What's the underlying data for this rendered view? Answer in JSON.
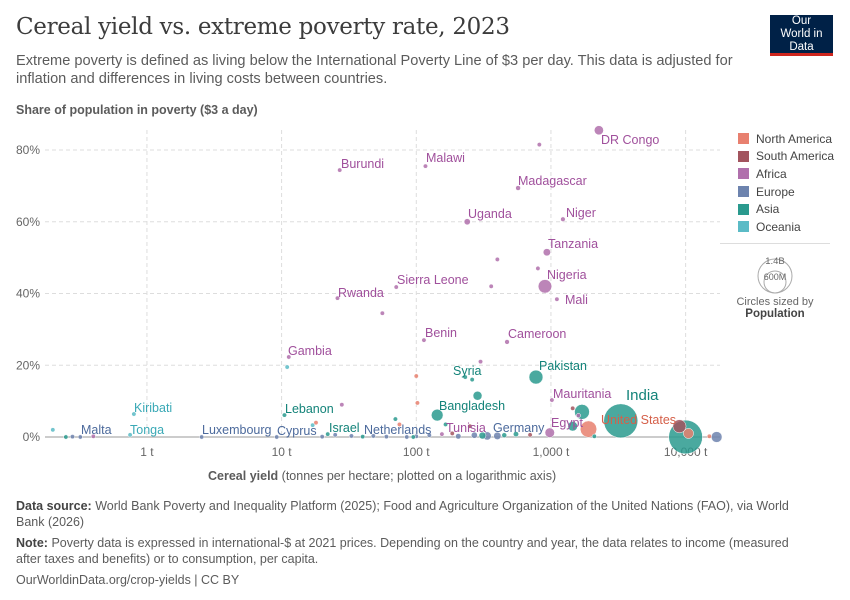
{
  "header": {
    "title": "Cereal yield vs. extreme poverty rate, 2023",
    "subtitle": "Extreme poverty is defined as living below the International Poverty Line of $3 per day. This data is adjusted for inflation and differences in living costs between countries.",
    "logo": "Our World in Data"
  },
  "legend": {
    "items": [
      {
        "label": "North America",
        "color": "#E8806F"
      },
      {
        "label": "South America",
        "color": "#A2545E"
      },
      {
        "label": "Africa",
        "color": "#B070AC"
      },
      {
        "label": "Europe",
        "color": "#6D83AE"
      },
      {
        "label": "Asia",
        "color": "#2A9A8E"
      },
      {
        "label": "Oceania",
        "color": "#5BBBC6"
      }
    ],
    "size_big": "1.4B",
    "size_small": "600M",
    "size_note": "Circles sized by",
    "size_var": "Population"
  },
  "footer": {
    "source_label": "Data source:",
    "source": "World Bank Poverty and Inequality Platform (2025); Food and Agriculture Organization of the United Nations (FAO), via World Bank (2026)",
    "note_label": "Note:",
    "note": "Poverty data is expressed in international-$ at 2021 prices. Depending on the country and year, the data relates to income (measured after taxes and benefits) or to consumption, per capita.",
    "url": "OurWorldinData.org/crop-yields | CC BY"
  },
  "chart_data": {
    "type": "scatter",
    "ylabel": "Share of population in poverty ($3 a day)",
    "xlabel_main": "Cereal yield",
    "xlabel_note": "(tonnes per hectare; plotted on a logarithmic axis)",
    "x_scale": "log",
    "xlim": [
      0.175,
      18000
    ],
    "ylim": [
      0,
      85
    ],
    "x_ticks": [
      {
        "v": 1,
        "label": "1 t"
      },
      {
        "v": 10,
        "label": "10 t"
      },
      {
        "v": 100,
        "label": "100 t"
      },
      {
        "v": 1000,
        "label": "1,000 t"
      },
      {
        "v": 10000,
        "label": "10,000 t"
      }
    ],
    "y_ticks": [
      {
        "v": 0,
        "label": "0%"
      },
      {
        "v": 20,
        "label": "20%"
      },
      {
        "v": 40,
        "label": "40%"
      },
      {
        "v": 60,
        "label": "60%"
      },
      {
        "v": 80,
        "label": "80%"
      }
    ],
    "grid": true,
    "legend_position": "right",
    "points": [
      {
        "label": "DR Congo",
        "x": 2270,
        "y": 85.5,
        "region": "Africa",
        "pop": 105
      },
      {
        "label": "Malawi",
        "x": 117,
        "y": 75.5,
        "region": "Africa",
        "pop": 21
      },
      {
        "label": "Burundi",
        "x": 27,
        "y": 74.4,
        "region": "Africa",
        "pop": 13
      },
      {
        "label": "Madagascar",
        "x": 570,
        "y": 69.4,
        "region": "Africa",
        "pop": 30
      },
      {
        "label": "Uganda",
        "x": 239,
        "y": 60,
        "region": "Africa",
        "pop": 48
      },
      {
        "label": "Niger",
        "x": 1227,
        "y": 60.7,
        "region": "Africa",
        "pop": 27
      },
      {
        "label": "Tanzania",
        "x": 933,
        "y": 51.5,
        "region": "Africa",
        "pop": 67
      },
      {
        "label": "Nigeria",
        "x": 903,
        "y": 42,
        "region": "Africa",
        "pop": 227
      },
      {
        "label": "Mali",
        "x": 1107,
        "y": 38.4,
        "region": "Africa",
        "pop": 23
      },
      {
        "label": "Sierra Leone",
        "x": 71,
        "y": 41.8,
        "region": "Africa",
        "pop": 8.8
      },
      {
        "label": "Rwanda",
        "x": 26,
        "y": 38.7,
        "region": "Africa",
        "pop": 14
      },
      {
        "label": "Benin",
        "x": 114,
        "y": 27,
        "region": "Africa",
        "pop": 14
      },
      {
        "label": "Cameroon",
        "x": 472,
        "y": 26.5,
        "region": "Africa",
        "pop": 28
      },
      {
        "label": "Gambia",
        "x": 11.3,
        "y": 22.3,
        "region": "Africa",
        "pop": 2.7
      },
      {
        "label": "Mauritania",
        "x": 1016,
        "y": 10.3,
        "region": "Africa",
        "pop": 5
      },
      {
        "label": "Egypt",
        "x": 980,
        "y": 1.2,
        "region": "Africa",
        "pop": 113
      },
      {
        "label": "Tunisia",
        "x": 155,
        "y": 0.8,
        "region": "Africa",
        "pop": 12
      },
      {
        "label": "Syria",
        "x": 231,
        "y": 16.7,
        "region": "Asia",
        "pop": 23
      },
      {
        "label": "Pakistan",
        "x": 774,
        "y": 16.7,
        "region": "Asia",
        "pop": 240
      },
      {
        "label": "India",
        "x": 3300,
        "y": 4.5,
        "region": "Asia",
        "pop": 1430
      },
      {
        "label": "Bangladesh",
        "x": 143,
        "y": 6.1,
        "region": "Asia",
        "pop": 171
      },
      {
        "label": "Lebanon",
        "x": 10.5,
        "y": 6.1,
        "region": "Asia",
        "pop": 5.4
      },
      {
        "label": "Israel",
        "x": 22,
        "y": 0.8,
        "region": "Asia",
        "pop": 9.7
      },
      {
        "label": "United States",
        "x": 1900,
        "y": 2.2,
        "region": "North America",
        "pop": 335
      },
      {
        "label": "Germany",
        "x": 336,
        "y": 0.3,
        "region": "Europe",
        "pop": 84
      },
      {
        "label": "Netherlands",
        "x": 100,
        "y": 0.2,
        "region": "Europe",
        "pop": 18
      },
      {
        "label": "Cyprus",
        "x": 9.2,
        "y": 0,
        "region": "Europe",
        "pop": 1.3
      },
      {
        "label": "Luxembourg",
        "x": 2.55,
        "y": 0,
        "region": "Europe",
        "pop": 0.7
      },
      {
        "label": "Malta",
        "x": 0.32,
        "y": 0,
        "region": "Europe",
        "pop": 0.5
      },
      {
        "label": "Tonga",
        "x": 0.75,
        "y": 0.6,
        "region": "Oceania",
        "pop": 0.1
      },
      {
        "label": "Kiribati",
        "x": 0.8,
        "y": 6.4,
        "region": "Oceania",
        "pop": 0.13
      },
      {
        "x": 10000,
        "y": 0,
        "region": "Asia",
        "pop": 1410
      },
      {
        "x": 9000,
        "y": 3,
        "region": "South America",
        "pop": 216
      },
      {
        "x": 10500,
        "y": 1,
        "region": "North America",
        "pop": 128
      },
      {
        "x": 17000,
        "y": 0,
        "region": "Europe",
        "pop": 144
      },
      {
        "x": 15000,
        "y": 0.2,
        "region": "North America",
        "pop": 5
      },
      {
        "x": 1700,
        "y": 7,
        "region": "Asia",
        "pop": 277
      },
      {
        "x": 1450,
        "y": 3,
        "region": "Asia",
        "pop": 115
      },
      {
        "x": 1450,
        "y": 8,
        "region": "South America",
        "pop": 12
      },
      {
        "x": 1600,
        "y": 6,
        "region": "Africa",
        "pop": 7
      },
      {
        "x": 285,
        "y": 11.5,
        "region": "Asia",
        "pop": 100
      },
      {
        "x": 300,
        "y": 21,
        "region": "Africa",
        "pop": 6
      },
      {
        "x": 400,
        "y": 49.5,
        "region": "Africa",
        "pop": 4
      },
      {
        "x": 800,
        "y": 47,
        "region": "Africa",
        "pop": 17
      },
      {
        "x": 360,
        "y": 42,
        "region": "Africa",
        "pop": 7
      },
      {
        "x": 56,
        "y": 34.5,
        "region": "Africa",
        "pop": 2.5
      },
      {
        "x": 820,
        "y": 81.5,
        "region": "Africa",
        "pop": 5
      },
      {
        "x": 260,
        "y": 16,
        "region": "Asia",
        "pop": 4
      },
      {
        "x": 100,
        "y": 17,
        "region": "North America",
        "pop": 11
      },
      {
        "x": 102,
        "y": 9.5,
        "region": "North America",
        "pop": 3
      },
      {
        "x": 70,
        "y": 5,
        "region": "Asia",
        "pop": 4
      },
      {
        "x": 28,
        "y": 9,
        "region": "Africa",
        "pop": 2
      },
      {
        "x": 18,
        "y": 4,
        "region": "North America",
        "pop": 0.4
      },
      {
        "x": 17,
        "y": 3.3,
        "region": "Oceania",
        "pop": 0.6
      },
      {
        "x": 11,
        "y": 19.5,
        "region": "Oceania",
        "pop": 0.3
      },
      {
        "x": 75,
        "y": 3.5,
        "region": "North America",
        "pop": 2
      },
      {
        "x": 165,
        "y": 3.5,
        "region": "Asia",
        "pop": 4
      },
      {
        "x": 185,
        "y": 1,
        "region": "South America",
        "pop": 4
      },
      {
        "x": 250,
        "y": 3,
        "region": "South America",
        "pop": 6
      },
      {
        "x": 450,
        "y": 0.5,
        "region": "Asia",
        "pop": 30
      },
      {
        "x": 550,
        "y": 0.8,
        "region": "Asia",
        "pop": 35
      },
      {
        "x": 700,
        "y": 0.6,
        "region": "South America",
        "pop": 8
      },
      {
        "x": 2100,
        "y": 0.2,
        "region": "Asia",
        "pop": 10
      },
      {
        "x": 0.2,
        "y": 2,
        "region": "Oceania",
        "pop": 0.1
      },
      {
        "x": 0.25,
        "y": 0,
        "region": "Asia",
        "pop": 0.5
      },
      {
        "x": 0.28,
        "y": 0.1,
        "region": "Europe",
        "pop": 0.4
      },
      {
        "x": 0.4,
        "y": 0.2,
        "region": "Africa",
        "pop": 0.1
      },
      {
        "x": 20,
        "y": 0.1,
        "region": "Europe",
        "pop": 2
      },
      {
        "x": 25,
        "y": 0.6,
        "region": "Europe",
        "pop": 3
      },
      {
        "x": 33,
        "y": 0.3,
        "region": "Europe",
        "pop": 6
      },
      {
        "x": 40,
        "y": 0.1,
        "region": "Asia",
        "pop": 4
      },
      {
        "x": 48,
        "y": 0.3,
        "region": "Europe",
        "pop": 5
      },
      {
        "x": 60,
        "y": 0.1,
        "region": "Europe",
        "pop": 10
      },
      {
        "x": 85,
        "y": 0,
        "region": "Europe",
        "pop": 8
      },
      {
        "x": 95,
        "y": 0,
        "region": "Asia",
        "pop": 9
      },
      {
        "x": 125,
        "y": 0.5,
        "region": "Europe",
        "pop": 11
      },
      {
        "x": 205,
        "y": 0.2,
        "region": "Europe",
        "pop": 38
      },
      {
        "x": 270,
        "y": 0.5,
        "region": "Europe",
        "pop": 47
      },
      {
        "x": 310,
        "y": 0.4,
        "region": "Asia",
        "pop": 60
      },
      {
        "x": 400,
        "y": 0.3,
        "region": "Europe",
        "pop": 68
      }
    ]
  }
}
